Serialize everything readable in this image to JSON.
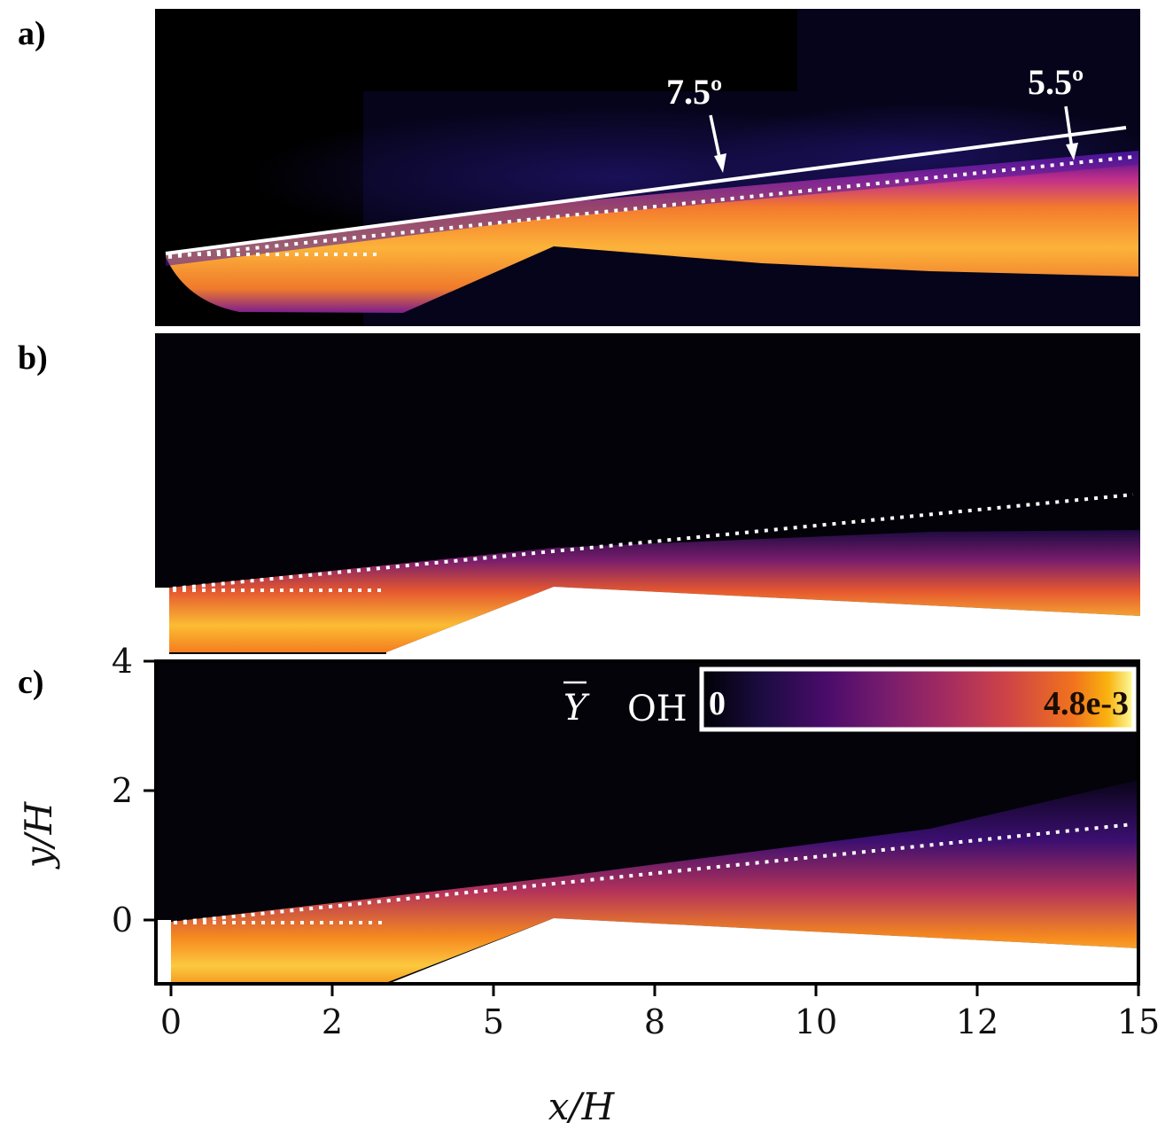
{
  "panels": {
    "a": {
      "label": "a)"
    },
    "b": {
      "label": "b)"
    },
    "c": {
      "label": "c)"
    }
  },
  "annotations": {
    "angle_solid": "7.5º",
    "angle_dotted": "5.5º"
  },
  "colorbar": {
    "symbol": "Y",
    "symbol_sub": "OH",
    "min_label": "0",
    "max_label": "4.8e-3",
    "colormap": "inferno"
  },
  "colors": {
    "background_field": "#03030d",
    "flame_core": "#fcb43a",
    "flame_edge": "#5b1ea0"
  },
  "chart_data": {
    "type": "heatmap",
    "xlabel": "x/H",
    "ylabel": "y/H",
    "xlim": [
      -0.2,
      15
    ],
    "ylim": [
      -1,
      4
    ],
    "x_ticks": [
      {
        "value": 0,
        "label": "0"
      },
      {
        "value": 2.5,
        "label": "2"
      },
      {
        "value": 5,
        "label": "5"
      },
      {
        "value": 7.5,
        "label": "8"
      },
      {
        "value": 10,
        "label": "10"
      },
      {
        "value": 12.5,
        "label": "12"
      },
      {
        "value": 15,
        "label": "15"
      }
    ],
    "y_ticks": [
      {
        "value": 0,
        "label": "0"
      },
      {
        "value": 2,
        "label": "2"
      },
      {
        "value": 4,
        "label": "4"
      }
    ],
    "color_range": [
      0,
      0.0048
    ],
    "reference_lines": [
      {
        "style": "solid",
        "angle_deg": 7.5,
        "from": [
          0,
          0
        ],
        "panel": "a"
      },
      {
        "style": "dotted",
        "angle_deg": 5.5,
        "from": [
          0,
          0
        ],
        "to": [
          15,
          1.45
        ]
      },
      {
        "style": "dotted",
        "angle_deg": 0,
        "from": [
          0,
          -0.05
        ],
        "to": [
          3.3,
          -0.05
        ]
      }
    ],
    "lower_wall": [
      [
        0,
        -1
      ],
      [
        3.3,
        -1
      ],
      [
        5.9,
        0.05
      ],
      [
        15,
        -0.45
      ]
    ]
  }
}
